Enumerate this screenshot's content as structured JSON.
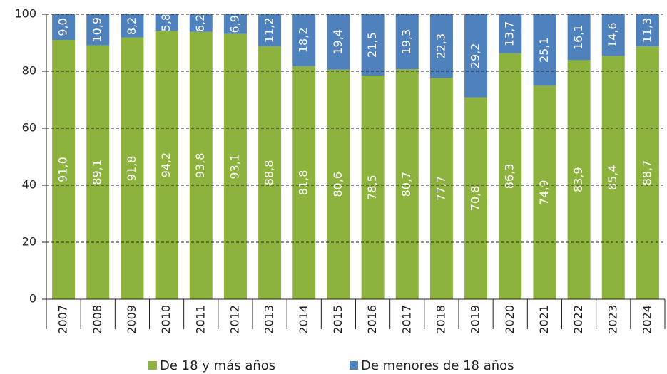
{
  "chart_data": {
    "type": "stacked_bar",
    "categories": [
      "2007",
      "2008",
      "2009",
      "2010",
      "2011",
      "2012",
      "2013",
      "2014",
      "2015",
      "2016",
      "2017",
      "2018",
      "2019",
      "2020",
      "2021",
      "2022",
      "2023",
      "2024"
    ],
    "series": [
      {
        "name": "De 18 y más años",
        "color": "#8db33e",
        "values": [
          91.0,
          89.1,
          91.8,
          94.2,
          93.8,
          93.1,
          88.8,
          81.8,
          80.6,
          78.5,
          80.7,
          77.7,
          70.8,
          86.3,
          74.9,
          83.9,
          85.4,
          88.7
        ],
        "value_labels": [
          "91,0",
          "89,1",
          "91,8",
          "94,2",
          "93,8",
          "93,1",
          "88,8",
          "81,8",
          "80,6",
          "78,5",
          "80,7",
          "77,7",
          "70,8",
          "86,3",
          "74,9",
          "83,9",
          "85,4",
          "88,7"
        ]
      },
      {
        "name": "De menores de 18 años",
        "color": "#4f81bd",
        "values": [
          9.0,
          10.9,
          8.2,
          5.8,
          6.2,
          6.9,
          11.2,
          18.2,
          19.4,
          21.5,
          19.3,
          22.3,
          29.2,
          13.7,
          25.1,
          16.1,
          14.6,
          11.3
        ],
        "value_labels": [
          "9,0",
          "10,9",
          "8,2",
          "5,8",
          "6,2",
          "6,9",
          "11,2",
          "18,2",
          "19,4",
          "21,5",
          "19,3",
          "22,3",
          "29,2",
          "13,7",
          "25,1",
          "16,1",
          "14,6",
          "11,3"
        ]
      }
    ],
    "ylim": [
      0,
      100
    ],
    "yticks": [
      0,
      20,
      40,
      60,
      80,
      100
    ],
    "grid": true,
    "legend": "bottom"
  }
}
